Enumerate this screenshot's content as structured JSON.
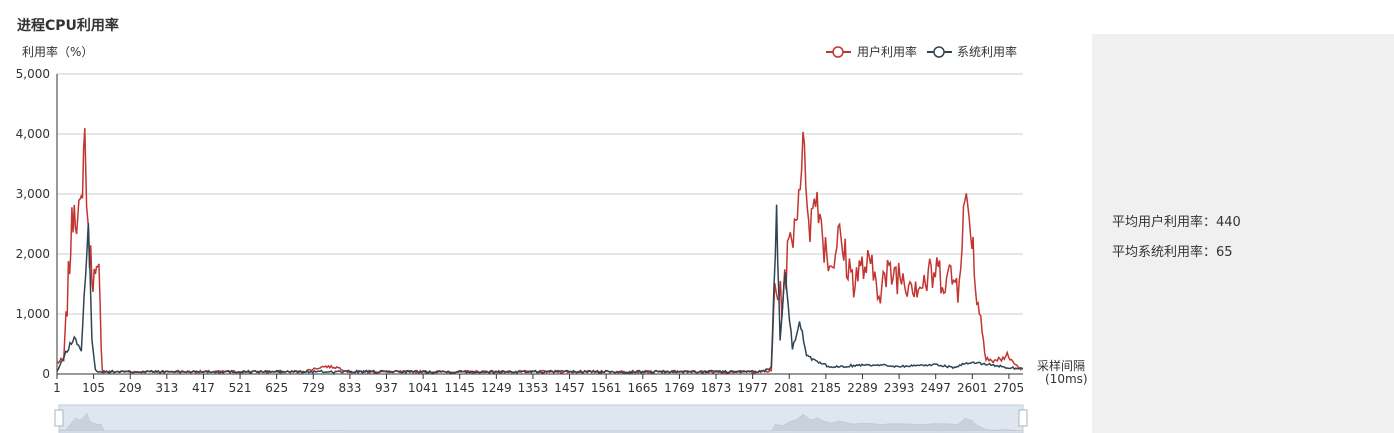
{
  "panel_title": "进程CPU利用率",
  "stats": {
    "avg_user_label": "平均用户利用率：",
    "avg_user_value": "440",
    "avg_sys_label": "平均系统利用率：",
    "avg_sys_value": "65"
  },
  "chart_data": {
    "type": "line",
    "ylabel": "利用率（%）",
    "xlabel": "采样间隔",
    "xlabel_unit": "(10ms)",
    "ylim": [
      0,
      5000
    ],
    "yticks": [
      "0",
      "1,000",
      "2,000",
      "3,000",
      "4,000",
      "5,000"
    ],
    "xlim": [
      1,
      2745
    ],
    "xticks": [
      1,
      105,
      209,
      313,
      417,
      521,
      625,
      729,
      833,
      937,
      1041,
      1145,
      1249,
      1353,
      1457,
      1561,
      1665,
      1769,
      1873,
      1977,
      2081,
      2185,
      2289,
      2393,
      2497,
      2601,
      2705
    ],
    "legend_position": "top-right",
    "series": [
      {
        "name": "用户利用率",
        "color": "#c23531",
        "points": [
          [
            1,
            200
          ],
          [
            20,
            220
          ],
          [
            30,
            1200
          ],
          [
            40,
            2200
          ],
          [
            50,
            2900
          ],
          [
            60,
            2500
          ],
          [
            70,
            2800
          ],
          [
            80,
            4100
          ],
          [
            85,
            3000
          ],
          [
            90,
            2200
          ],
          [
            100,
            1800
          ],
          [
            110,
            1500
          ],
          [
            120,
            1600
          ],
          [
            130,
            30
          ],
          [
            300,
            30
          ],
          [
            700,
            30
          ],
          [
            760,
            120
          ],
          [
            800,
            100
          ],
          [
            830,
            30
          ],
          [
            1200,
            30
          ],
          [
            1600,
            30
          ],
          [
            2000,
            30
          ],
          [
            2030,
            40
          ],
          [
            2040,
            1500
          ],
          [
            2060,
            1200
          ],
          [
            2080,
            2100
          ],
          [
            2100,
            2600
          ],
          [
            2120,
            3800
          ],
          [
            2140,
            2500
          ],
          [
            2160,
            3000
          ],
          [
            2180,
            2200
          ],
          [
            2200,
            1800
          ],
          [
            2220,
            2300
          ],
          [
            2260,
            1600
          ],
          [
            2300,
            1800
          ],
          [
            2340,
            1500
          ],
          [
            2380,
            1700
          ],
          [
            2420,
            1600
          ],
          [
            2460,
            1500
          ],
          [
            2500,
            1700
          ],
          [
            2540,
            1600
          ],
          [
            2560,
            1500
          ],
          [
            2580,
            2900
          ],
          [
            2600,
            2400
          ],
          [
            2610,
            1500
          ],
          [
            2640,
            300
          ],
          [
            2660,
            200
          ],
          [
            2700,
            300
          ],
          [
            2740,
            60
          ]
        ]
      },
      {
        "name": "系统利用率",
        "color": "#2f4554",
        "points": [
          [
            1,
            30
          ],
          [
            30,
            400
          ],
          [
            50,
            600
          ],
          [
            70,
            400
          ],
          [
            90,
            2400
          ],
          [
            95,
            1800
          ],
          [
            100,
            600
          ],
          [
            110,
            50
          ],
          [
            130,
            30
          ],
          [
            700,
            30
          ],
          [
            1200,
            30
          ],
          [
            1600,
            30
          ],
          [
            2000,
            30
          ],
          [
            2030,
            100
          ],
          [
            2045,
            2700
          ],
          [
            2055,
            600
          ],
          [
            2070,
            1800
          ],
          [
            2090,
            400
          ],
          [
            2110,
            900
          ],
          [
            2130,
            300
          ],
          [
            2160,
            200
          ],
          [
            2200,
            100
          ],
          [
            2300,
            150
          ],
          [
            2400,
            120
          ],
          [
            2500,
            150
          ],
          [
            2550,
            100
          ],
          [
            2600,
            200
          ],
          [
            2650,
            150
          ],
          [
            2700,
            100
          ],
          [
            2745,
            80
          ]
        ]
      }
    ]
  }
}
